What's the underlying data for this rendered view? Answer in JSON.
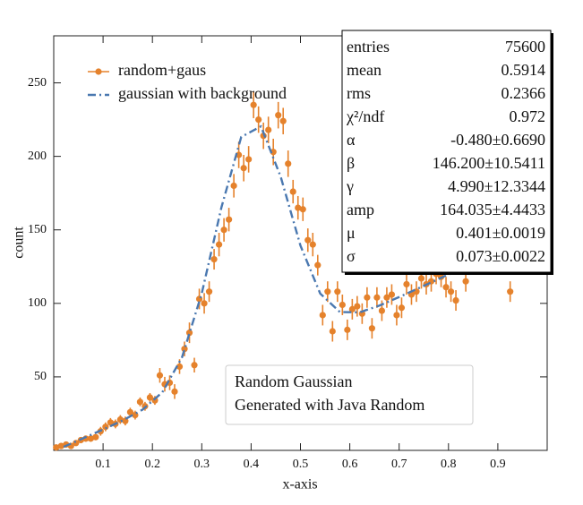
{
  "chart_data": {
    "type": "scatter",
    "xlabel": "x-axis",
    "ylabel": "count",
    "xlim": [
      0,
      1
    ],
    "ylim": [
      0,
      282
    ],
    "xticks": [
      0.1,
      0.2,
      0.3,
      0.4,
      0.5,
      0.6,
      0.7,
      0.8,
      0.9
    ],
    "yticks": [
      50,
      100,
      150,
      200,
      250
    ],
    "series": [
      {
        "name": "random+gaus",
        "type": "scatter",
        "color": "#e5822c",
        "x": [
          0.005,
          0.015,
          0.025,
          0.035,
          0.045,
          0.055,
          0.065,
          0.075,
          0.085,
          0.095,
          0.105,
          0.115,
          0.125,
          0.135,
          0.145,
          0.155,
          0.165,
          0.175,
          0.185,
          0.195,
          0.205,
          0.215,
          0.225,
          0.235,
          0.245,
          0.255,
          0.265,
          0.275,
          0.285,
          0.295,
          0.305,
          0.315,
          0.325,
          0.335,
          0.345,
          0.355,
          0.365,
          0.375,
          0.385,
          0.395,
          0.405,
          0.415,
          0.425,
          0.435,
          0.445,
          0.455,
          0.465,
          0.475,
          0.485,
          0.495,
          0.505,
          0.515,
          0.525,
          0.535,
          0.545,
          0.555,
          0.565,
          0.575,
          0.585,
          0.595,
          0.605,
          0.615,
          0.625,
          0.635,
          0.645,
          0.655,
          0.665,
          0.675,
          0.685,
          0.695,
          0.705,
          0.715,
          0.725,
          0.735,
          0.745,
          0.755,
          0.765,
          0.775,
          0.785,
          0.795,
          0.805,
          0.815,
          0.835,
          0.925
        ],
        "values": [
          2,
          3,
          4,
          3,
          5,
          7,
          8,
          8,
          9,
          13,
          16,
          19,
          18,
          21,
          20,
          26,
          24,
          33,
          30,
          36,
          34,
          51,
          45,
          46,
          40,
          57,
          69,
          80,
          58,
          103,
          100,
          108,
          130,
          140,
          150,
          157,
          180,
          201,
          192,
          198,
          235,
          225,
          214,
          218,
          203,
          228,
          224,
          195,
          176,
          165,
          164,
          143,
          140,
          126,
          92,
          108,
          81,
          108,
          99,
          82,
          96,
          98,
          93,
          104,
          83,
          104,
          95,
          104,
          106,
          92,
          97,
          113,
          106,
          108,
          117,
          113,
          115,
          120,
          118,
          111,
          108,
          102,
          115,
          108
        ],
        "errors": [
          2,
          2,
          2,
          2,
          2,
          2,
          2,
          2,
          2,
          3,
          3,
          3,
          3,
          3,
          3,
          3,
          3,
          3,
          3,
          3,
          3,
          5,
          5,
          5,
          5,
          5,
          5,
          7,
          5,
          7,
          7,
          7,
          7,
          8,
          8,
          8,
          8,
          9,
          9,
          9,
          9,
          9,
          9,
          9,
          9,
          9,
          9,
          9,
          8,
          8,
          8,
          8,
          8,
          7,
          7,
          7,
          7,
          7,
          7,
          7,
          7,
          7,
          7,
          7,
          7,
          7,
          7,
          7,
          7,
          7,
          7,
          7,
          7,
          7,
          7,
          7,
          7,
          7,
          7,
          7,
          7,
          7,
          7,
          7
        ]
      },
      {
        "name": "gaussian with background",
        "type": "line",
        "style": "dash-dot",
        "color": "#4a78b0",
        "x": [
          0.02,
          0.06,
          0.1,
          0.14,
          0.18,
          0.22,
          0.26,
          0.3,
          0.34,
          0.38,
          0.42,
          0.46,
          0.5,
          0.54,
          0.58,
          0.62,
          0.66,
          0.7,
          0.74,
          0.78,
          0.82
        ],
        "values": [
          2.4,
          8.3,
          14.2,
          20.4,
          27.7,
          39.5,
          63.3,
          106.8,
          165.5,
          213.2,
          220.4,
          186.1,
          139.3,
          106.7,
          94.1,
          93.9,
          98.5,
          104.3,
          110.4,
          116.6,
          122.8
        ]
      }
    ],
    "stats": [
      {
        "label": "entries",
        "value": "75600"
      },
      {
        "label": "mean",
        "value": "0.5914"
      },
      {
        "label": "rms",
        "value": "0.2366"
      },
      {
        "label": "χ²/ndf",
        "value": "0.972"
      },
      {
        "label": "α",
        "value": "-0.480±0.6690"
      },
      {
        "label": "β",
        "value": "146.200±10.5411"
      },
      {
        "label": "γ",
        "value": "4.990±12.3344"
      },
      {
        "label": "amp",
        "value": "164.035±4.4433"
      },
      {
        "label": "μ",
        "value": "0.401±0.0019"
      },
      {
        "label": "σ",
        "value": "0.073±0.0022"
      }
    ],
    "annotation": [
      "Random Gaussian",
      "Generated with Java Random"
    ]
  }
}
